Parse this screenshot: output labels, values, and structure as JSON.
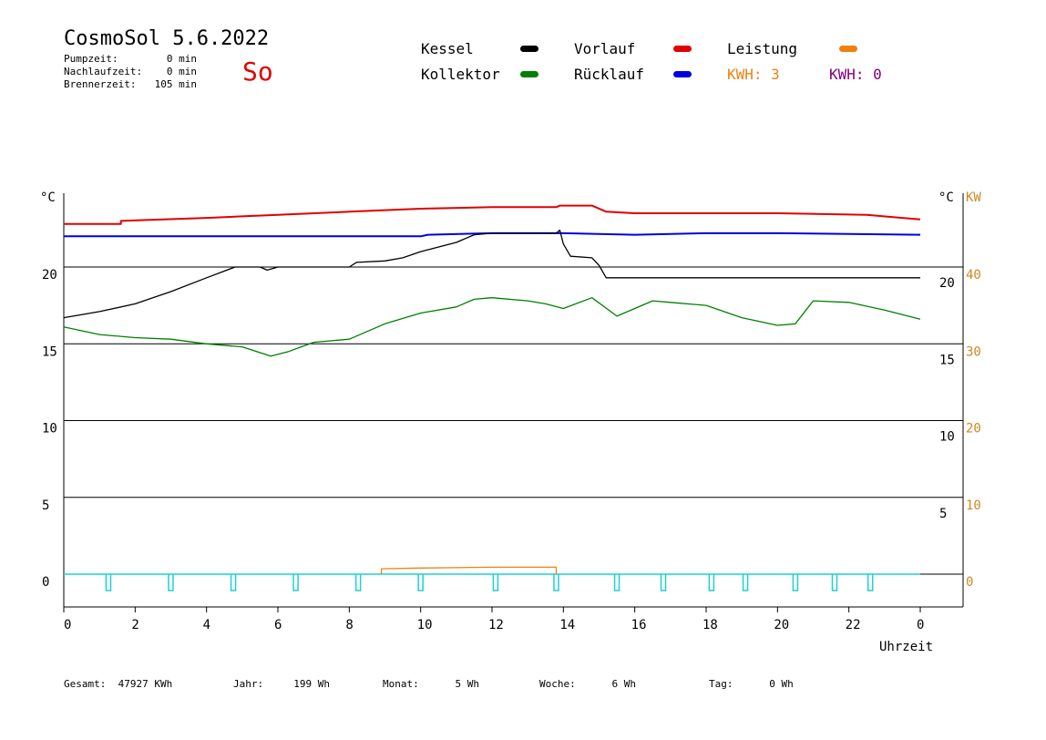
{
  "header": {
    "title": "CosmoSol 5.6.2022",
    "day": "So",
    "stats": [
      {
        "label": "Pumpzeit:",
        "value": "0 min"
      },
      {
        "label": "Nachlaufzeit:",
        "value": "0 min"
      },
      {
        "label": "Brennerzeit:",
        "value": "105 min"
      }
    ]
  },
  "legend": {
    "kessel": {
      "label": "Kessel",
      "color": "#000000"
    },
    "vorlauf": {
      "label": "Vorlauf",
      "color": "#e00000"
    },
    "leistung": {
      "label": "Leistung",
      "color": "#f08010"
    },
    "kollektor": {
      "label": "Kollektor",
      "color": "#008000"
    },
    "ruecklauf": {
      "label": "Rücklauf",
      "color": "#0000e0"
    },
    "kwh1": {
      "label": "KWH: 3",
      "color": "#f08010"
    },
    "kwh2": {
      "label": "KWH: 0",
      "color": "#800080"
    }
  },
  "footer": [
    {
      "label": "Gesamt:",
      "value": "47927 KWh"
    },
    {
      "label": "Jahr:",
      "value": "199 Wh"
    },
    {
      "label": "Monat:",
      "value": "5 Wh"
    },
    {
      "label": "Woche:",
      "value": "6 Wh"
    },
    {
      "label": "Tag:",
      "value": "0 Wh"
    }
  ],
  "chart_data": {
    "type": "line",
    "xlabel": "Uhrzeit",
    "x_ticks": [
      "0",
      "2",
      "4",
      "6",
      "8",
      "10",
      "12",
      "14",
      "16",
      "18",
      "20",
      "22",
      "0"
    ],
    "xlim": [
      0,
      24
    ],
    "left_axis": {
      "unit": "°C",
      "ticks": [
        "0",
        "5",
        "10",
        "15",
        "20"
      ],
      "ylim": [
        -2,
        25
      ]
    },
    "right_axis_c": {
      "unit": "°C",
      "ticks": [
        "5",
        "10",
        "15",
        "20"
      ]
    },
    "right_axis_kw": {
      "unit": "KW",
      "ticks": [
        "0",
        "10",
        "20",
        "30",
        "40"
      ],
      "color": "#d08820"
    },
    "grid": "horizontal",
    "series": [
      {
        "name": "Vorlauf",
        "color": "#e00000",
        "points": [
          [
            0,
            22.8
          ],
          [
            1.6,
            22.8
          ],
          [
            1.6,
            23
          ],
          [
            4,
            23.2
          ],
          [
            6,
            23.4
          ],
          [
            8,
            23.6
          ],
          [
            10,
            23.8
          ],
          [
            12,
            23.9
          ],
          [
            13.8,
            23.9
          ],
          [
            13.9,
            24.0
          ],
          [
            14.8,
            24.0
          ],
          [
            15.2,
            23.6
          ],
          [
            16,
            23.5
          ],
          [
            18,
            23.5
          ],
          [
            20,
            23.5
          ],
          [
            22.5,
            23.4
          ],
          [
            23.5,
            23.2
          ],
          [
            24,
            23.1
          ]
        ]
      },
      {
        "name": "Rücklauf",
        "color": "#0000e0",
        "points": [
          [
            0,
            22.0
          ],
          [
            10,
            22.0
          ],
          [
            10.2,
            22.1
          ],
          [
            12,
            22.2
          ],
          [
            14,
            22.2
          ],
          [
            16,
            22.1
          ],
          [
            18,
            22.2
          ],
          [
            20,
            22.2
          ],
          [
            24,
            22.1
          ]
        ]
      },
      {
        "name": "Kessel",
        "color": "#000000",
        "points": [
          [
            0,
            16.7
          ],
          [
            1,
            17.1
          ],
          [
            2,
            17.6
          ],
          [
            3,
            18.4
          ],
          [
            4,
            19.3
          ],
          [
            4.8,
            20.0
          ],
          [
            5.5,
            20.0
          ],
          [
            5.7,
            19.8
          ],
          [
            6,
            20.0
          ],
          [
            8,
            20.0
          ],
          [
            8.2,
            20.3
          ],
          [
            9,
            20.4
          ],
          [
            9.5,
            20.6
          ],
          [
            10,
            21.0
          ],
          [
            11,
            21.6
          ],
          [
            11.5,
            22.1
          ],
          [
            12,
            22.2
          ],
          [
            13.8,
            22.2
          ],
          [
            13.9,
            22.4
          ],
          [
            14,
            21.5
          ],
          [
            14.2,
            20.7
          ],
          [
            14.8,
            20.6
          ],
          [
            15,
            20.1
          ],
          [
            15.2,
            19.3
          ],
          [
            16,
            19.3
          ],
          [
            20,
            19.3
          ],
          [
            24,
            19.3
          ]
        ]
      },
      {
        "name": "Kollektor",
        "color": "#008000",
        "points": [
          [
            0,
            16.1
          ],
          [
            1,
            15.6
          ],
          [
            2,
            15.4
          ],
          [
            3,
            15.3
          ],
          [
            4,
            15.0
          ],
          [
            5,
            14.8
          ],
          [
            5.8,
            14.2
          ],
          [
            6.3,
            14.5
          ],
          [
            7,
            15.1
          ],
          [
            8,
            15.3
          ],
          [
            9,
            16.3
          ],
          [
            10,
            17.0
          ],
          [
            11,
            17.4
          ],
          [
            11.5,
            17.9
          ],
          [
            12,
            18.0
          ],
          [
            13,
            17.8
          ],
          [
            13.5,
            17.6
          ],
          [
            14,
            17.3
          ],
          [
            14.8,
            18.0
          ],
          [
            15.5,
            16.8
          ],
          [
            16,
            17.3
          ],
          [
            16.5,
            17.8
          ],
          [
            17,
            17.7
          ],
          [
            18,
            17.5
          ],
          [
            19,
            16.7
          ],
          [
            20,
            16.2
          ],
          [
            20.5,
            16.3
          ],
          [
            21,
            17.8
          ],
          [
            22,
            17.7
          ],
          [
            23,
            17.2
          ],
          [
            24,
            16.6
          ]
        ]
      },
      {
        "name": "Leistung",
        "color": "#f08010",
        "axis": "KW",
        "points": [
          [
            8.9,
            0
          ],
          [
            8.9,
            0.7
          ],
          [
            10,
            0.8
          ],
          [
            12,
            0.9
          ],
          [
            13.8,
            0.9
          ],
          [
            13.8,
            0
          ]
        ]
      }
    ],
    "pump_pulses": {
      "color": "#20d0d0",
      "times": [
        1.25,
        3.0,
        4.75,
        6.5,
        8.25,
        10.0,
        12.1,
        13.8,
        15.5,
        16.8,
        18.15,
        19.1,
        20.5,
        21.6,
        22.6
      ]
    }
  }
}
